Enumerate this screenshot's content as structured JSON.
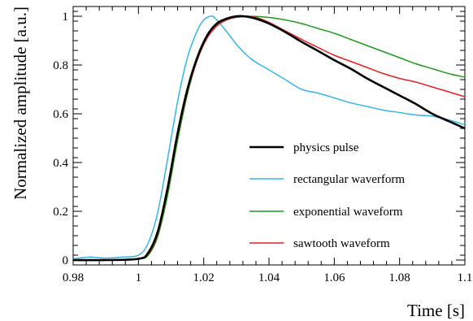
{
  "chart_data": {
    "type": "line",
    "title": "",
    "xlabel": "Time [s]",
    "ylabel": "Normalized amplitude [a.u.]",
    "xlim": [
      0.98,
      1.1
    ],
    "ylim": [
      -0.02,
      1.04
    ],
    "x_ticks": [
      0.98,
      1,
      1.02,
      1.04,
      1.06,
      1.08,
      1.1
    ],
    "x_tick_labels": [
      "0.98",
      "1",
      "1.02",
      "1.04",
      "1.06",
      "1.08",
      "1.1"
    ],
    "y_ticks": [
      0,
      0.2,
      0.4,
      0.6,
      0.8,
      1
    ],
    "y_tick_labels": [
      "0",
      "0.2",
      "0.4",
      "0.6",
      "0.8",
      "1"
    ],
    "grid": false,
    "legend_position": "right",
    "series": [
      {
        "name": "physics pulse",
        "color": "#000000",
        "x": [
          0.98,
          0.99,
          1.0,
          1.003,
          1.006,
          1.009,
          1.012,
          1.015,
          1.018,
          1.021,
          1.024,
          1.027,
          1.03,
          1.033,
          1.036,
          1.04,
          1.045,
          1.05,
          1.055,
          1.06,
          1.065,
          1.07,
          1.075,
          1.08,
          1.085,
          1.09,
          1.095,
          1.1
        ],
        "y": [
          0.0,
          0.0,
          0.005,
          0.03,
          0.12,
          0.3,
          0.52,
          0.7,
          0.83,
          0.92,
          0.97,
          0.99,
          1.0,
          0.999,
          0.99,
          0.97,
          0.935,
          0.895,
          0.858,
          0.82,
          0.785,
          0.745,
          0.71,
          0.675,
          0.64,
          0.6,
          0.57,
          0.54
        ]
      },
      {
        "name": "rectangular waverform",
        "color": "#33b5e5",
        "x": [
          0.98,
          0.985,
          0.99,
          0.995,
          1.0,
          1.003,
          1.006,
          1.009,
          1.012,
          1.015,
          1.018,
          1.02,
          1.022,
          1.023,
          1.025,
          1.028,
          1.031,
          1.035,
          1.04,
          1.045,
          1.05,
          1.055,
          1.06,
          1.065,
          1.07,
          1.075,
          1.08,
          1.085,
          1.09,
          1.095,
          1.1
        ],
        "y": [
          0.005,
          0.012,
          0.008,
          0.012,
          0.02,
          0.07,
          0.2,
          0.42,
          0.65,
          0.83,
          0.94,
          0.985,
          1.0,
          0.997,
          0.97,
          0.92,
          0.87,
          0.82,
          0.78,
          0.74,
          0.7,
          0.685,
          0.665,
          0.645,
          0.63,
          0.615,
          0.605,
          0.595,
          0.59,
          0.575,
          0.555
        ]
      },
      {
        "name": "exponential waveform",
        "color": "#1f9a1f",
        "x": [
          0.98,
          0.99,
          1.0,
          1.003,
          1.006,
          1.009,
          1.012,
          1.015,
          1.018,
          1.021,
          1.024,
          1.027,
          1.03,
          1.034,
          1.04,
          1.045,
          1.05,
          1.055,
          1.06,
          1.065,
          1.07,
          1.075,
          1.08,
          1.085,
          1.09,
          1.095,
          1.1
        ],
        "y": [
          0.0,
          0.0,
          0.005,
          0.02,
          0.1,
          0.27,
          0.49,
          0.68,
          0.82,
          0.91,
          0.96,
          0.985,
          0.995,
          1.0,
          0.995,
          0.985,
          0.97,
          0.95,
          0.93,
          0.905,
          0.88,
          0.855,
          0.83,
          0.805,
          0.785,
          0.765,
          0.75
        ]
      },
      {
        "name": "sawtooth waveform",
        "color": "#e61e1e",
        "x": [
          0.98,
          0.99,
          1.0,
          1.003,
          1.006,
          1.009,
          1.012,
          1.015,
          1.018,
          1.021,
          1.024,
          1.027,
          1.03,
          1.033,
          1.036,
          1.04,
          1.045,
          1.05,
          1.055,
          1.06,
          1.065,
          1.07,
          1.075,
          1.08,
          1.085,
          1.09,
          1.095,
          1.1
        ],
        "y": [
          0.0,
          0.0,
          0.005,
          0.025,
          0.11,
          0.29,
          0.51,
          0.69,
          0.82,
          0.91,
          0.96,
          0.985,
          0.997,
          1.0,
          0.995,
          0.975,
          0.94,
          0.905,
          0.872,
          0.84,
          0.815,
          0.79,
          0.765,
          0.745,
          0.73,
          0.71,
          0.69,
          0.67
        ]
      }
    ]
  }
}
